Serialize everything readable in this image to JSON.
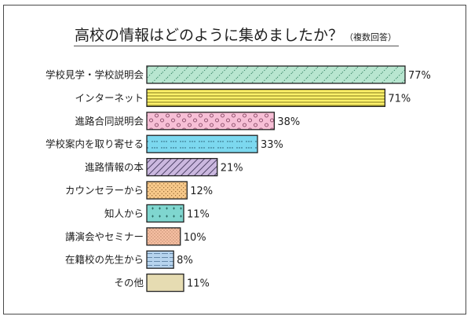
{
  "header": {
    "title": "高校の情報はどのように集めましたか？",
    "subtitle": "（複数回答）"
  },
  "colors": {
    "bar_outline": "#222222",
    "text": "#1f1f1f",
    "fills": [
      "#b8e6d0",
      "#fff26a",
      "#f7bfd6",
      "#7cd8ef",
      "#cbb8df",
      "#f8c98a",
      "#7fd6cf",
      "#f6bfa2",
      "#b7d4ee",
      "#e6dcb2"
    ]
  },
  "chart_data": {
    "type": "bar",
    "orientation": "horizontal",
    "title": "高校の情報はどのように集めましたか？",
    "subtitle": "（複数回答）",
    "categories": [
      "学校見学・学校説明会",
      "インターネット",
      "進路合同説明会",
      "学校案内を取り寄せる",
      "進路情報の本",
      "カウンセラーから",
      "知人から",
      "講演会やセミナー",
      "在籍校の先生から",
      "その他"
    ],
    "values": [
      77,
      71,
      38,
      33,
      21,
      12,
      11,
      10,
      8,
      11
    ],
    "value_labels": [
      "77%",
      "71%",
      "38%",
      "33%",
      "21%",
      "12%",
      "11%",
      "10%",
      "8%",
      "11%"
    ],
    "unit": "%",
    "patterns": [
      "diagonal-dots",
      "horizontal-lines",
      "circles",
      "dotted-lines",
      "diagonal-hatch",
      "dots",
      "crosses",
      "stipple",
      "dashed-lines",
      "plain"
    ],
    "xlim": [
      0,
      80
    ],
    "grid": false,
    "legend": "none"
  }
}
